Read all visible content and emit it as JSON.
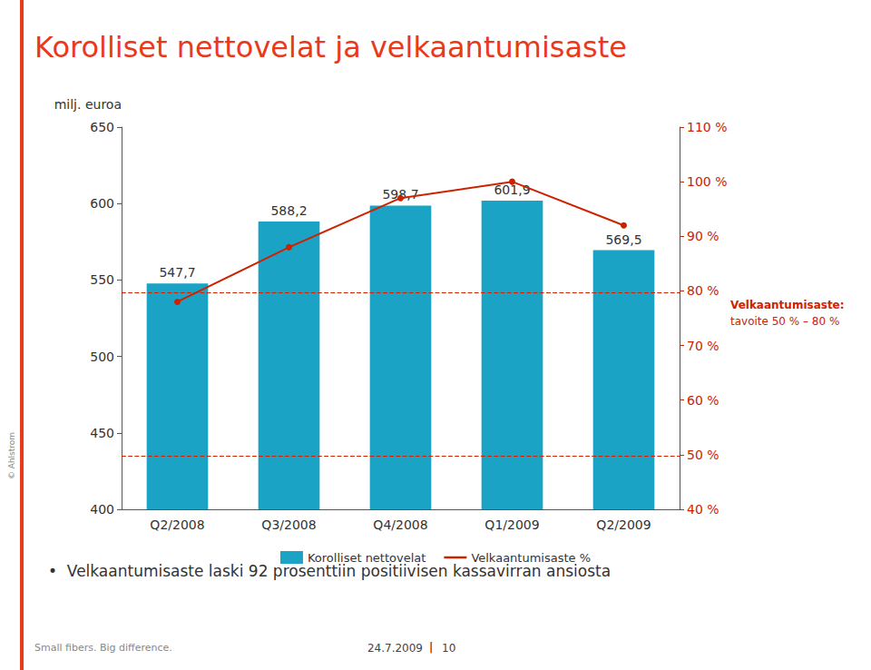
{
  "chart_data": {
    "type": "bar",
    "title": "Korolliset nettovelat ja velkaantumisaste",
    "title_color": "#E83A1A",
    "categories": [
      "Q2/2008",
      "Q3/2008",
      "Q4/2008",
      "Q1/2009",
      "Q2/2009"
    ],
    "series": [
      {
        "name": "Korolliset nettovelat",
        "type": "bar",
        "color": "#1BA3C6",
        "values": [
          547.7,
          588.2,
          598.7,
          601.9,
          569.5
        ],
        "value_labels": [
          "547,7",
          "588,2",
          "598,7",
          "601,9",
          "569,5"
        ]
      },
      {
        "name": "Velkaantumisaste %",
        "type": "line",
        "color": "#CC2200",
        "axis": "y2",
        "marker": "circle",
        "values": [
          78,
          88,
          97,
          100,
          92
        ]
      }
    ],
    "ylabel": "milj. euroa",
    "ylim": [
      400,
      650
    ],
    "yticks": [
      400,
      450,
      500,
      550,
      600,
      650
    ],
    "y2lim": [
      40,
      110
    ],
    "y2ticks": [
      {
        "value": 40,
        "label": "40 %"
      },
      {
        "value": 50,
        "label": "50 %"
      },
      {
        "value": 60,
        "label": "60 %"
      },
      {
        "value": 70,
        "label": "70 %"
      },
      {
        "value": 80,
        "label": "80 %"
      },
      {
        "value": 90,
        "label": "90 %"
      },
      {
        "value": 100,
        "label": "100 %"
      },
      {
        "value": 110,
        "label": "110 %"
      }
    ],
    "reference_lines": [
      {
        "value": 435,
        "color": "#CC2200",
        "line_style": "dashed"
      },
      {
        "value": 542,
        "color": "#CC2200",
        "line_style": "dashed"
      }
    ],
    "annotations": [
      "Velkaantumisaste:",
      "tavoite 50 % – 80 %"
    ],
    "bullet_text": "•  Velkaantumisaste laski 92 prosenttiin positiivisen kassavirran ansiosta",
    "footer_left": "Small fibers. Big difference.",
    "footer_center": "24.7.2009",
    "footer_separator": "|",
    "footer_page": "10",
    "copyright": "© Ahlstrom",
    "legend": "bottom",
    "grid": false
  }
}
